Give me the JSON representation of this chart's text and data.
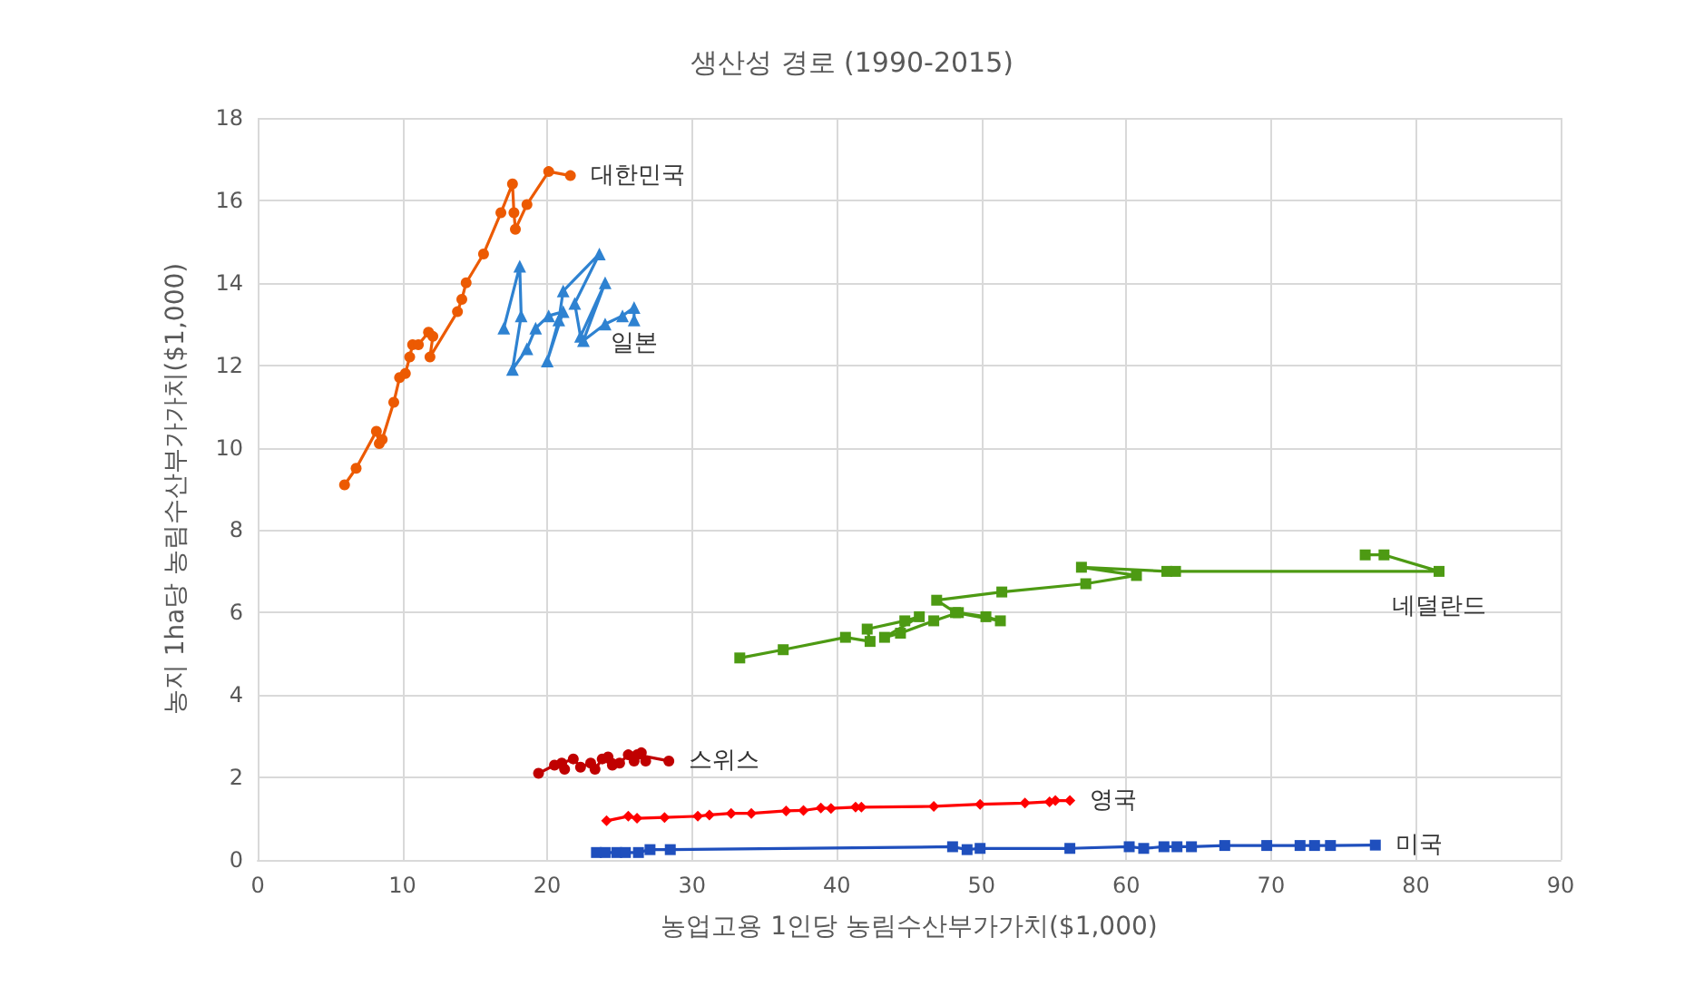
{
  "chart_data": {
    "type": "line",
    "title": "생산성 경로 (1990-2015)",
    "xlabel": "농업고용 1인당 농림수산부가가치($1,000)",
    "ylabel": "농지 1ha당 농림수산부가가치($1,000)",
    "xlim": [
      0,
      90
    ],
    "xticks": [
      0,
      10,
      20,
      30,
      40,
      50,
      60,
      70,
      80,
      90
    ],
    "ylim": [
      0,
      18
    ],
    "yticks": [
      0,
      2,
      4,
      6,
      8,
      10,
      12,
      14,
      16,
      18
    ],
    "grid": true,
    "legend": false,
    "series": [
      {
        "name": "대한민국",
        "color": "#ec5a02",
        "marker": "circle",
        "x": [
          6.0,
          6.8,
          8.2,
          8.4,
          8.6,
          9.4,
          9.8,
          10.2,
          10.5,
          10.7,
          11.1,
          11.8,
          12.1,
          11.9,
          13.8,
          14.1,
          14.4,
          15.6,
          16.8,
          17.6,
          17.7,
          17.8,
          18.6,
          20.1,
          21.6
        ],
        "values": [
          9.1,
          9.5,
          10.4,
          10.1,
          10.2,
          11.1,
          11.7,
          11.8,
          12.2,
          12.5,
          12.5,
          12.8,
          12.7,
          12.2,
          13.3,
          13.6,
          14.0,
          14.7,
          15.7,
          16.4,
          15.7,
          15.3,
          15.9,
          16.7,
          16.6
        ]
      },
      {
        "name": "일본",
        "color": "#2e82d1",
        "marker": "triangle",
        "x": [
          17.0,
          18.1,
          18.2,
          17.6,
          18.6,
          19.2,
          20.1,
          21.1,
          20.0,
          20.8,
          21.1,
          23.6,
          21.9,
          22.3,
          24.0,
          22.5,
          24.0,
          25.2,
          26.0,
          26.0
        ],
        "values": [
          12.9,
          14.4,
          13.2,
          11.9,
          12.4,
          12.9,
          13.2,
          13.3,
          12.1,
          13.1,
          13.8,
          14.7,
          13.5,
          12.7,
          14.0,
          12.6,
          13.0,
          13.2,
          13.4,
          13.1
        ]
      },
      {
        "name": "네덜란드",
        "color": "#4d9a13",
        "marker": "square",
        "x": [
          33.3,
          36.3,
          40.6,
          42.3,
          42.1,
          44.7,
          45.7,
          43.3,
          44.4,
          46.7,
          48.4,
          50.3,
          51.3,
          48.2,
          46.9,
          51.4,
          57.2,
          60.7,
          56.9,
          62.8,
          63.4,
          81.6,
          77.8,
          76.5
        ],
        "values": [
          4.9,
          5.1,
          5.4,
          5.3,
          5.6,
          5.8,
          5.9,
          5.4,
          5.5,
          5.8,
          6.0,
          5.9,
          5.8,
          6.0,
          6.3,
          6.5,
          6.7,
          6.9,
          7.1,
          7.0,
          7.0,
          7.0,
          7.4,
          7.4
        ]
      },
      {
        "name": "스위스",
        "color": "#c00000",
        "marker": "circle",
        "x": [
          19.4,
          20.5,
          21.2,
          21.0,
          21.8,
          22.3,
          23.0,
          23.3,
          23.8,
          24.5,
          24.2,
          25.0,
          25.6,
          26.0,
          26.5,
          26.8,
          26.2,
          28.4
        ],
        "values": [
          2.1,
          2.3,
          2.2,
          2.35,
          2.45,
          2.25,
          2.35,
          2.2,
          2.45,
          2.3,
          2.5,
          2.35,
          2.55,
          2.4,
          2.6,
          2.4,
          2.55,
          2.4
        ]
      },
      {
        "name": "영국",
        "color": "#ff0000",
        "marker": "diamond",
        "x": [
          24.1,
          25.6,
          26.2,
          28.1,
          30.4,
          31.2,
          32.7,
          34.1,
          36.5,
          37.7,
          38.9,
          39.6,
          41.3,
          41.7,
          46.7,
          49.9,
          53.0,
          54.7,
          55.1,
          56.1
        ],
        "values": [
          0.95,
          1.06,
          1.01,
          1.03,
          1.06,
          1.09,
          1.13,
          1.13,
          1.19,
          1.2,
          1.26,
          1.25,
          1.28,
          1.28,
          1.3,
          1.35,
          1.38,
          1.41,
          1.44,
          1.44
        ]
      },
      {
        "name": "미국",
        "color": "#1f4fbd",
        "marker": "square",
        "x": [
          23.4,
          24.0,
          24.8,
          25.4,
          26.3,
          27.1,
          28.5,
          48.0,
          49.0,
          49.9,
          56.1,
          60.2,
          61.2,
          62.6,
          63.5,
          64.5,
          66.8,
          69.7,
          72.0,
          73.0,
          74.1,
          77.2
        ],
        "values": [
          0.18,
          0.18,
          0.18,
          0.18,
          0.18,
          0.25,
          0.25,
          0.32,
          0.25,
          0.28,
          0.28,
          0.32,
          0.28,
          0.32,
          0.32,
          0.32,
          0.35,
          0.35,
          0.35,
          0.35,
          0.35,
          0.36
        ]
      }
    ]
  }
}
